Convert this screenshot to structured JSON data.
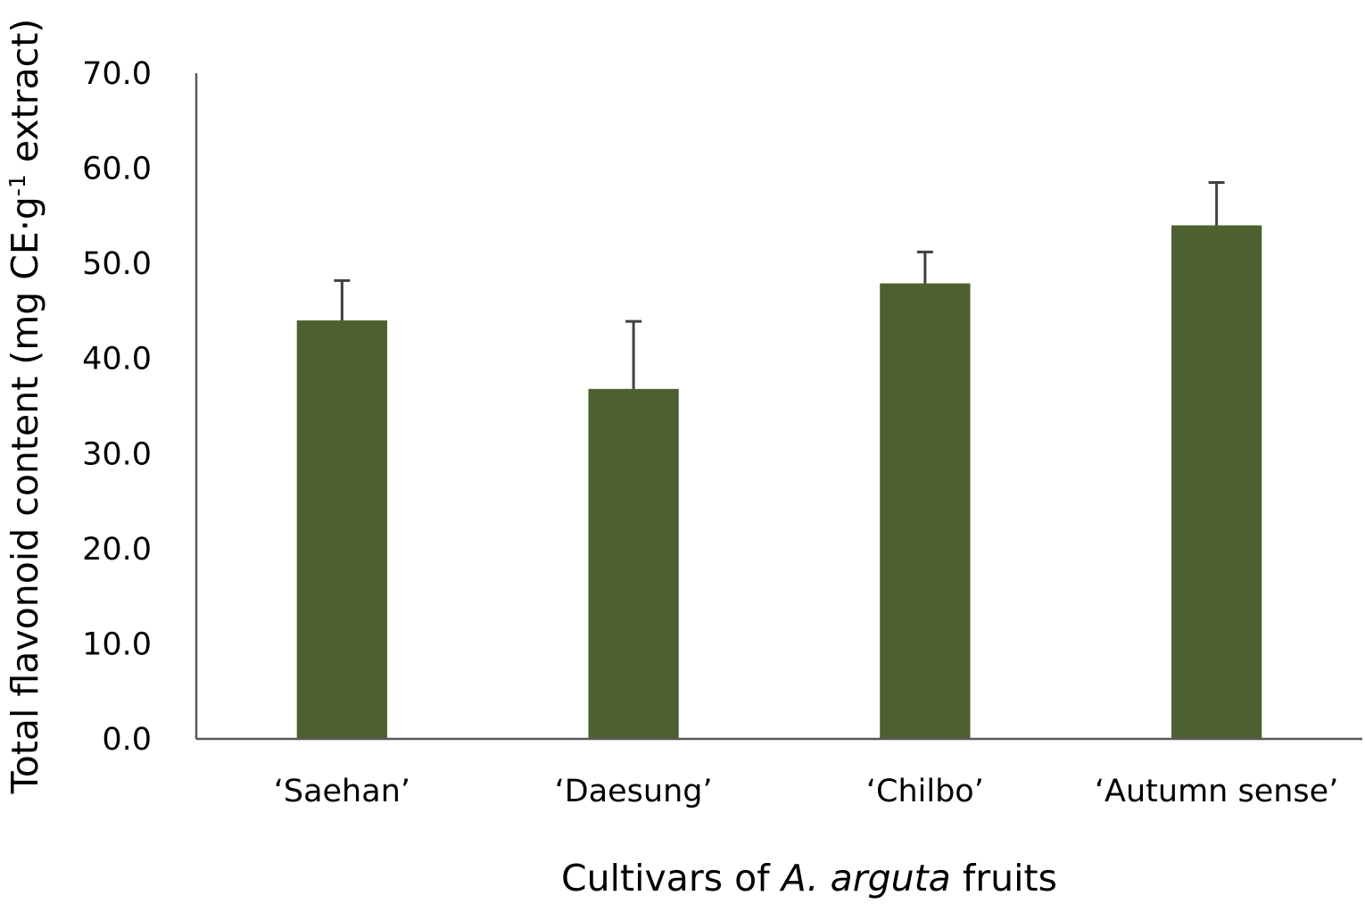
{
  "chart_data": {
    "type": "bar",
    "categories": [
      "‘Saehan’",
      "‘Daesung’",
      "‘Chilbo’",
      "‘Autumn sense’"
    ],
    "values": [
      44.0,
      36.8,
      47.9,
      54.0
    ],
    "error_plus": [
      4.2,
      7.1,
      3.3,
      4.5
    ],
    "ylim": [
      0,
      70
    ],
    "yticks": [
      "0.0",
      "10.0",
      "20.0",
      "30.0",
      "40.0",
      "50.0",
      "60.0",
      "70.0"
    ],
    "ylabel": "Total flavonoid content (mg CE·g",
    "ylabel_superscript": "-1",
    "ylabel_end": " extract)",
    "xlabel_prefix": "Cultivars of ",
    "xlabel_italic": "A. arguta",
    "xlabel_suffix": " fruits",
    "grid": false,
    "legend": "none",
    "bar_color": "#4d6130"
  }
}
